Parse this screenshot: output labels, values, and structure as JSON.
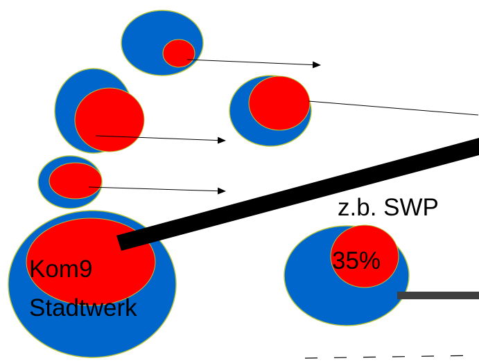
{
  "colors": {
    "background": "#ffffff",
    "outer_fill": "#0066cc",
    "inner_fill": "#ff0000",
    "circle_outline": "#b5c43a",
    "line": "#000000",
    "thick_line_gray": "#3f3f3f"
  },
  "labels": {
    "large_circle_line1": "Kom9",
    "large_circle_line2": "Stadtwerk",
    "swp": "z.b. SWP",
    "percent": "35%"
  }
}
